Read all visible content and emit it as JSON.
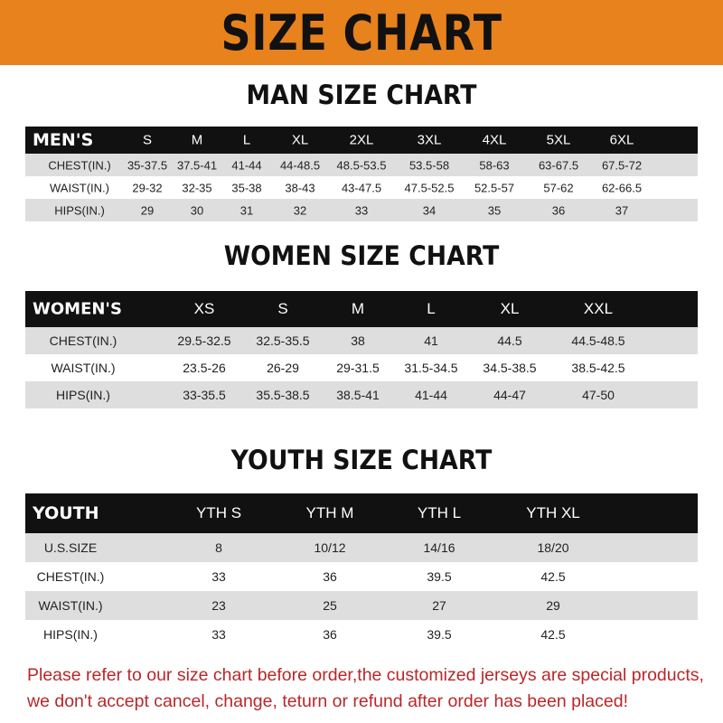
{
  "banner_title": "SIZE CHART",
  "colors": {
    "banner": "#e8821c",
    "header_row": "#111111",
    "stripe": "#dedede",
    "note": "#b8282a"
  },
  "men": {
    "title": "MAN SIZE CHART",
    "headers": [
      "MEN'S",
      "S",
      "M",
      "L",
      "XL",
      "2XL",
      "3XL",
      "4XL",
      "5XL",
      "6XL"
    ],
    "rows": [
      [
        "CHEST(IN.)",
        "35-37.5",
        "37.5-41",
        "41-44",
        "44-48.5",
        "48.5-53.5",
        "53.5-58",
        "58-63",
        "63-67.5",
        "67.5-72"
      ],
      [
        "WAIST(IN.)",
        "29-32",
        "32-35",
        "35-38",
        "38-43",
        "43-47.5",
        "47.5-52.5",
        "52.5-57",
        "57-62",
        "62-66.5"
      ],
      [
        "HIPS(IN.)",
        "29",
        "30",
        "31",
        "32",
        "33",
        "34",
        "35",
        "36",
        "37"
      ]
    ]
  },
  "women": {
    "title": "WOMEN SIZE CHART",
    "headers": [
      "WOMEN'S",
      "XS",
      "S",
      "M",
      "L",
      "XL",
      "XXL"
    ],
    "rows": [
      [
        "CHEST(IN.)",
        "29.5-32.5",
        "32.5-35.5",
        "38",
        "41",
        "44.5",
        "44.5-48.5"
      ],
      [
        "WAIST(IN.)",
        "23.5-26",
        "26-29",
        "29-31.5",
        "31.5-34.5",
        "34.5-38.5",
        "38.5-42.5"
      ],
      [
        "HIPS(IN.)",
        "33-35.5",
        "35.5-38.5",
        "38.5-41",
        "41-44",
        "44-47",
        "47-50"
      ]
    ]
  },
  "youth": {
    "title": "YOUTH SIZE CHART",
    "headers": [
      "YOUTH",
      "YTH S",
      "YTH M",
      "YTH L",
      "YTH XL"
    ],
    "rows": [
      [
        "U.S.SIZE",
        "8",
        "10/12",
        "14/16",
        "18/20"
      ],
      [
        "CHEST(IN.)",
        "33",
        "36",
        "39.5",
        "42.5"
      ],
      [
        "WAIST(IN.)",
        "23",
        "25",
        "27",
        "29"
      ],
      [
        "HIPS(IN.)",
        "33",
        "36",
        "39.5",
        "42.5"
      ]
    ]
  },
  "note": [
    "Please refer to our size chart before order,the customized jerseys are special products,",
    "we don't accept cancel, change, teturn or refund after order has been placed!"
  ]
}
